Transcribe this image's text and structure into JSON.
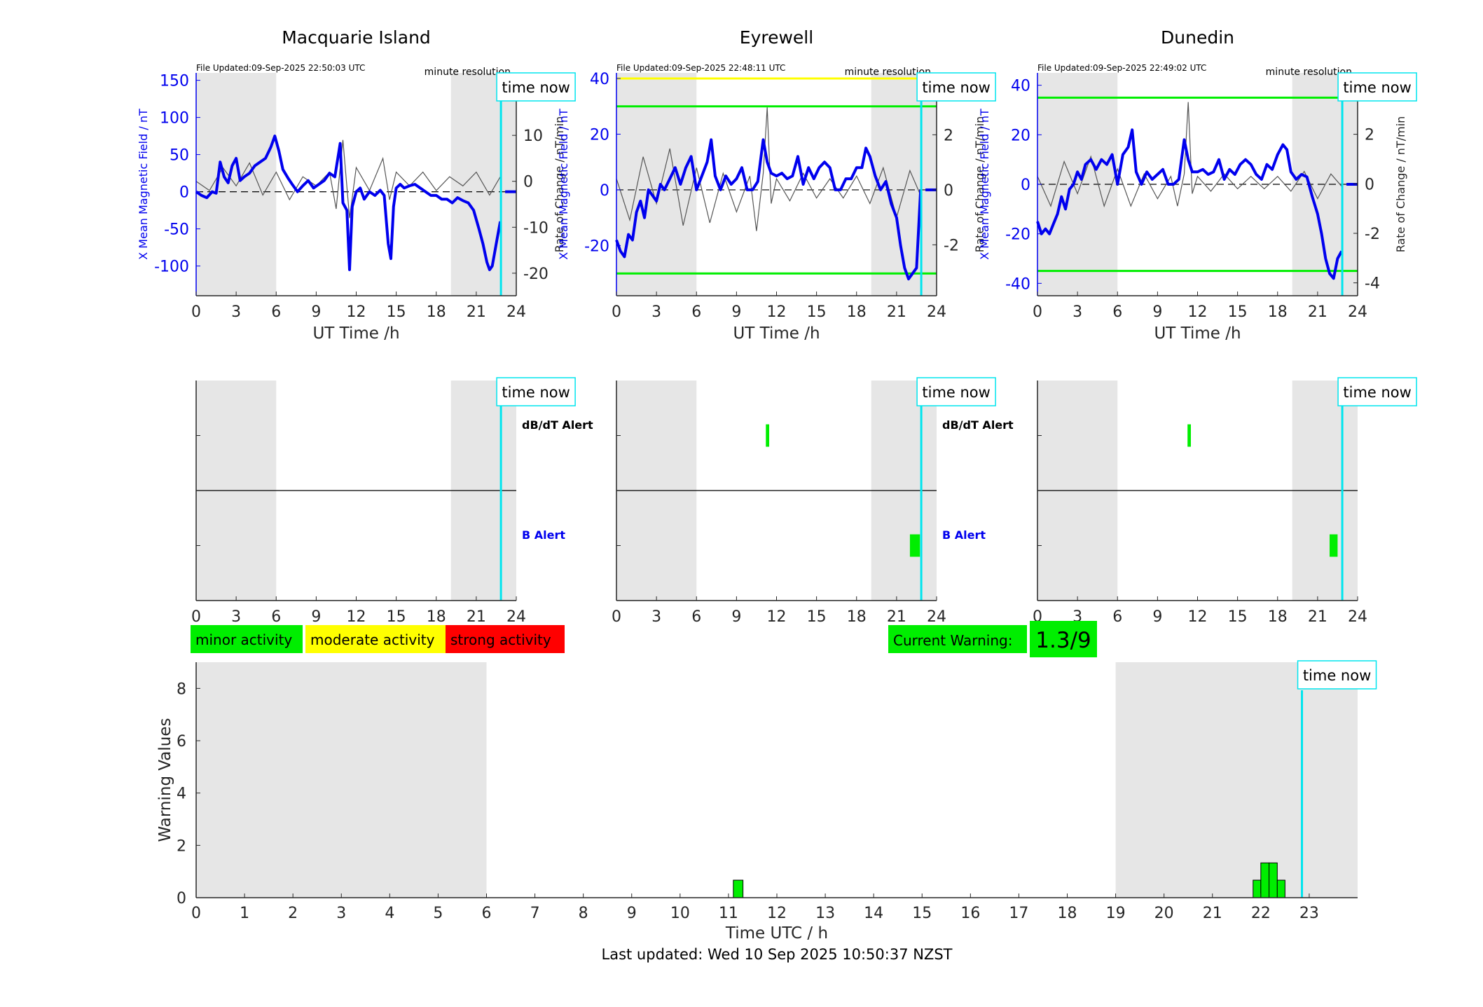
{
  "time_now_label": "time now",
  "shared": {
    "xlabel_top": "UT Time /h",
    "xticks_top": [
      "0",
      "3",
      "6",
      "9",
      "12",
      "15",
      "18",
      "21",
      "24"
    ],
    "left_ylabel": "X Mean Magnetic Field / nT",
    "right_ylabel": "Rate of Change / nT/min",
    "resolution": "minute resolution",
    "dbdt_alert_label": "dB/dT Alert",
    "b_alert_label": "B Alert"
  },
  "colors": {
    "field_line": "#0000ee",
    "rate_line": "#555555",
    "shade": "#e6e6e6",
    "time_now": "#00e5ee",
    "alert": "#00ee00",
    "moderate": "#ffff00",
    "strong": "#ff0000"
  },
  "legend": {
    "minor": "minor activity",
    "moderate": "moderate activity",
    "strong": "strong activity"
  },
  "current_warning": {
    "label": "Current Warning:",
    "value": "1.3/9"
  },
  "footer": "Last updated: Wed 10 Sep 2025 10:50:37 NZST",
  "chart_data": [
    {
      "type": "line",
      "title": "Macquarie Island",
      "file_updated": "File Updated:09-Sep-2025 22:50:03 UTC",
      "xlabel": "UT Time /h",
      "ylabel_left": "X Mean Magnetic Field / nT",
      "ylabel_right": "Rate of Change / nT/min",
      "xlim": [
        0,
        24
      ],
      "ylim_left": [
        -140,
        160
      ],
      "ylim_right": [
        -24.9,
        23.6
      ],
      "yticks_left": [
        -100,
        -50,
        0,
        50,
        100,
        150
      ],
      "yticks_right": [
        -20,
        -10,
        0,
        10,
        20
      ],
      "shaded_x": [
        [
          0,
          6
        ],
        [
          19.1,
          24
        ]
      ],
      "time_now": 22.85,
      "threshold_lines": [],
      "series": [
        {
          "name": "X Mean Magnetic Field / nT",
          "x": [
            0,
            0.4,
            0.8,
            1.2,
            1.5,
            1.8,
            2.1,
            2.4,
            2.7,
            3.0,
            3.3,
            3.6,
            4.0,
            4.4,
            4.8,
            5.2,
            5.6,
            5.9,
            6.2,
            6.5,
            6.9,
            7.2,
            7.6,
            8.0,
            8.4,
            8.8,
            9.2,
            9.6,
            10.0,
            10.4,
            10.8,
            11.0,
            11.3,
            11.5,
            11.7,
            12.0,
            12.3,
            12.6,
            13.0,
            13.4,
            13.8,
            14.1,
            14.4,
            14.6,
            14.8,
            15.0,
            15.3,
            15.6,
            16.0,
            16.4,
            16.8,
            17.2,
            17.6,
            18.0,
            18.4,
            18.8,
            19.2,
            19.6,
            20.0,
            20.4,
            20.8,
            21.2,
            21.5,
            21.8,
            22.0,
            22.2,
            22.4,
            22.6,
            22.8
          ],
          "values": [
            0,
            -5,
            -8,
            0,
            -2,
            40,
            20,
            12,
            35,
            45,
            15,
            20,
            25,
            35,
            40,
            45,
            60,
            75,
            55,
            30,
            18,
            10,
            0,
            8,
            15,
            5,
            10,
            15,
            25,
            20,
            65,
            -15,
            -25,
            -105,
            -20,
            0,
            5,
            -10,
            0,
            -5,
            2,
            -5,
            -70,
            -90,
            -20,
            5,
            10,
            5,
            8,
            10,
            5,
            0,
            -5,
            -5,
            -10,
            -10,
            -15,
            -8,
            -12,
            -15,
            -25,
            -50,
            -70,
            -95,
            -105,
            -100,
            -80,
            -60,
            -40
          ]
        },
        {
          "name": "Rate of Change / nT/min",
          "x": [
            0,
            1,
            2,
            3,
            4,
            5,
            6,
            7,
            8,
            9,
            10,
            10.5,
            11,
            11.5,
            12,
            13,
            14,
            14.5,
            15,
            16,
            17,
            18,
            19,
            20,
            21,
            22,
            22.8
          ],
          "values": [
            0,
            -2,
            3,
            -1,
            4,
            -3,
            2,
            -4,
            1,
            -1,
            2,
            -6,
            9,
            -8,
            3,
            -2,
            5,
            -4,
            2,
            -1,
            2,
            -2,
            1,
            -1,
            2,
            -3,
            1
          ]
        }
      ]
    },
    {
      "type": "line",
      "title": "Eyrewell",
      "file_updated": "File Updated:09-Sep-2025 22:48:11 UTC",
      "xlabel": "UT Time /h",
      "ylabel_left": "X Mean Magnetic Field / nT",
      "ylabel_right": "Rate of Change / nT/min",
      "xlim": [
        0,
        24
      ],
      "ylim_left": [
        -38,
        42
      ],
      "ylim_right": [
        -3.85,
        4.25
      ],
      "yticks_left": [
        -20,
        0,
        20,
        40
      ],
      "yticks_right": [
        -2,
        0,
        2,
        4
      ],
      "shaded_x": [
        [
          0,
          6
        ],
        [
          19.1,
          24
        ]
      ],
      "time_now": 22.85,
      "threshold_lines": [
        {
          "axis": "left",
          "value": 40,
          "level": "moderate"
        },
        {
          "axis": "left",
          "value": 30,
          "level": "minor"
        },
        {
          "axis": "left",
          "value": -30,
          "level": "minor"
        }
      ],
      "series": [
        {
          "name": "X Mean Magnetic Field / nT",
          "x": [
            0,
            0.3,
            0.6,
            0.9,
            1.2,
            1.5,
            1.8,
            2.1,
            2.4,
            2.7,
            3.0,
            3.3,
            3.6,
            4.0,
            4.4,
            4.8,
            5.2,
            5.6,
            6.0,
            6.4,
            6.8,
            7.1,
            7.4,
            7.8,
            8.2,
            8.6,
            9.0,
            9.4,
            9.8,
            10.2,
            10.6,
            11.0,
            11.3,
            11.6,
            12.0,
            12.4,
            12.8,
            13.2,
            13.6,
            14.0,
            14.4,
            14.8,
            15.2,
            15.6,
            16.0,
            16.4,
            16.8,
            17.2,
            17.6,
            18.0,
            18.4,
            18.7,
            19.0,
            19.4,
            19.8,
            20.2,
            20.6,
            21.0,
            21.3,
            21.6,
            21.9,
            22.2,
            22.5,
            22.8
          ],
          "values": [
            -18,
            -22,
            -24,
            -16,
            -18,
            -8,
            -4,
            -10,
            0,
            -2,
            -4,
            2,
            0,
            4,
            8,
            2,
            8,
            12,
            0,
            5,
            10,
            18,
            5,
            0,
            5,
            2,
            4,
            8,
            0,
            0,
            3,
            18,
            10,
            6,
            5,
            6,
            4,
            5,
            12,
            2,
            8,
            4,
            8,
            10,
            8,
            0,
            0,
            4,
            4,
            8,
            8,
            15,
            12,
            5,
            0,
            3,
            -5,
            -10,
            -20,
            -28,
            -32,
            -30,
            -28,
            0
          ]
        },
        {
          "name": "Rate of Change / nT/min",
          "x": [
            0,
            1,
            2,
            3,
            4,
            5,
            6,
            7,
            8,
            9,
            10,
            10.5,
            11,
            11.3,
            11.6,
            12,
            13,
            14,
            15,
            16,
            17,
            18,
            19,
            20,
            21,
            22,
            22.8
          ],
          "values": [
            0.4,
            -1.1,
            1.2,
            -0.5,
            1.5,
            -1.3,
            0.8,
            -1.2,
            0.6,
            -0.8,
            0.5,
            -1.5,
            0.6,
            3.0,
            -0.5,
            0.4,
            -0.4,
            0.6,
            -0.3,
            0.4,
            -0.3,
            0.5,
            -0.5,
            0.8,
            -1.0,
            0.7,
            -0.2
          ]
        }
      ]
    },
    {
      "type": "line",
      "title": "Dunedin",
      "file_updated": "File Updated:09-Sep-2025 22:49:02 UTC",
      "xlabel": "UT Time /h",
      "ylabel_left": "X Mean Magnetic Field / nT",
      "ylabel_right": "Rate of Change / nT/min",
      "xlim": [
        0,
        24
      ],
      "ylim_left": [
        -45,
        45
      ],
      "ylim_right": [
        -4.52,
        4.48
      ],
      "yticks_left": [
        -40,
        -20,
        0,
        20,
        40
      ],
      "yticks_right": [
        -4,
        -2,
        0,
        2,
        4
      ],
      "shaded_x": [
        [
          0,
          6
        ],
        [
          19.1,
          24
        ]
      ],
      "time_now": 22.85,
      "threshold_lines": [
        {
          "axis": "left",
          "value": 35,
          "level": "minor"
        },
        {
          "axis": "left",
          "value": -35,
          "level": "minor"
        }
      ],
      "series": [
        {
          "name": "X Mean Magnetic Field / nT",
          "x": [
            0,
            0.3,
            0.6,
            0.9,
            1.2,
            1.5,
            1.8,
            2.1,
            2.4,
            2.7,
            3.0,
            3.3,
            3.6,
            4.0,
            4.4,
            4.8,
            5.2,
            5.6,
            6.0,
            6.4,
            6.8,
            7.1,
            7.4,
            7.8,
            8.2,
            8.6,
            9.0,
            9.4,
            9.8,
            10.2,
            10.6,
            11.0,
            11.3,
            11.6,
            12.0,
            12.4,
            12.8,
            13.2,
            13.6,
            14.0,
            14.4,
            14.8,
            15.2,
            15.6,
            16.0,
            16.4,
            16.8,
            17.2,
            17.6,
            18.0,
            18.4,
            18.7,
            19.0,
            19.4,
            19.8,
            20.2,
            20.6,
            21.0,
            21.3,
            21.6,
            21.9,
            22.2,
            22.5,
            22.8
          ],
          "values": [
            -15,
            -20,
            -18,
            -20,
            -16,
            -12,
            -5,
            -10,
            -2,
            0,
            5,
            2,
            8,
            10,
            6,
            10,
            8,
            12,
            0,
            12,
            15,
            22,
            5,
            0,
            5,
            2,
            4,
            6,
            0,
            0,
            2,
            18,
            10,
            5,
            5,
            6,
            4,
            5,
            10,
            2,
            6,
            4,
            8,
            10,
            8,
            4,
            2,
            8,
            6,
            12,
            16,
            14,
            5,
            2,
            4,
            3,
            -5,
            -12,
            -20,
            -30,
            -36,
            -38,
            -30,
            -27
          ]
        },
        {
          "name": "Rate of Change / nT/min",
          "x": [
            0,
            1,
            2,
            3,
            4,
            5,
            6,
            7,
            8,
            9,
            10,
            10.5,
            11,
            11.3,
            11.6,
            12,
            13,
            14,
            15,
            16,
            17,
            18,
            19,
            20,
            21,
            22,
            22.8
          ],
          "values": [
            0.3,
            -0.9,
            0.9,
            -0.4,
            1.1,
            -0.9,
            0.6,
            -0.9,
            0.4,
            -0.6,
            0.3,
            -0.9,
            0.4,
            3.3,
            -0.4,
            0.3,
            -0.3,
            0.4,
            -0.2,
            0.3,
            -0.2,
            0.3,
            -0.3,
            0.5,
            -0.6,
            0.4,
            -0.1
          ]
        }
      ]
    },
    {
      "type": "bar",
      "panel": "alerts",
      "station": "Macquarie Island",
      "xlim": [
        0,
        24
      ],
      "xticks": [
        "0",
        "3",
        "6",
        "9",
        "12",
        "15",
        "18",
        "21",
        "24"
      ],
      "shaded_x": [
        [
          0,
          6
        ],
        [
          19.1,
          24
        ]
      ],
      "time_now": 22.85,
      "dbdt_alerts": [],
      "b_alerts": []
    },
    {
      "type": "bar",
      "panel": "alerts",
      "station": "Eyrewell",
      "xlim": [
        0,
        24
      ],
      "xticks": [
        "0",
        "3",
        "6",
        "9",
        "12",
        "15",
        "18",
        "21",
        "24"
      ],
      "shaded_x": [
        [
          0,
          6
        ],
        [
          19.1,
          24
        ]
      ],
      "time_now": 22.85,
      "dbdt_alerts": [
        [
          11.2,
          11.45
        ]
      ],
      "b_alerts": [
        [
          22.0,
          22.75
        ]
      ]
    },
    {
      "type": "bar",
      "panel": "alerts",
      "station": "Dunedin",
      "xlim": [
        0,
        24
      ],
      "xticks": [
        "0",
        "3",
        "6",
        "9",
        "12",
        "15",
        "18",
        "21",
        "24"
      ],
      "shaded_x": [
        [
          0,
          6
        ],
        [
          19.1,
          24
        ]
      ],
      "time_now": 22.85,
      "dbdt_alerts": [
        [
          11.25,
          11.5
        ]
      ],
      "b_alerts": [
        [
          21.9,
          22.5
        ]
      ]
    },
    {
      "type": "bar",
      "panel": "warning",
      "xlabel": "Time UTC / h",
      "ylabel": "Warning Values",
      "xlim": [
        0,
        24
      ],
      "ylim": [
        0,
        9
      ],
      "xticks": [
        "0",
        "1",
        "2",
        "3",
        "4",
        "5",
        "6",
        "7",
        "8",
        "9",
        "10",
        "11",
        "12",
        "13",
        "14",
        "15",
        "16",
        "17",
        "18",
        "19",
        "20",
        "21",
        "22",
        "23"
      ],
      "yticks": [
        "0",
        "2",
        "4",
        "6",
        "8"
      ],
      "shaded_x": [
        [
          0,
          6
        ],
        [
          19,
          24
        ]
      ],
      "time_now": 22.85,
      "bars": [
        {
          "x_start": 11.1,
          "x_end": 11.3,
          "value": 0.67
        },
        {
          "x_start": 21.84,
          "x_end": 22.0,
          "value": 0.67
        },
        {
          "x_start": 22.0,
          "x_end": 22.17,
          "value": 1.33
        },
        {
          "x_start": 22.17,
          "x_end": 22.34,
          "value": 1.33
        },
        {
          "x_start": 22.34,
          "x_end": 22.5,
          "value": 0.67
        }
      ]
    }
  ]
}
